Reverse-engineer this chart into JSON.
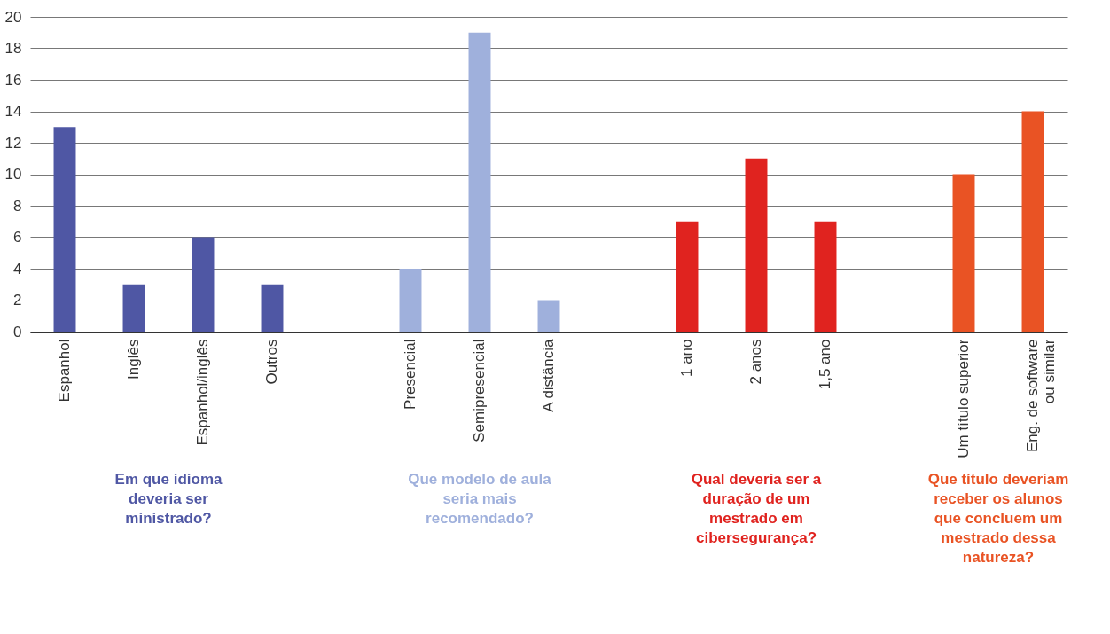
{
  "chart_data": {
    "type": "bar",
    "categories": [
      "Espanhol",
      "Inglês",
      "Espanhol/inglês",
      "Outros",
      null,
      "Presencial",
      "Semipresencial",
      "A distância",
      null,
      "1 ano",
      "2 anos",
      "1,5 ano",
      null,
      "Um título superior",
      "Eng. de software\nou similar"
    ],
    "series": [
      {
        "name": "Em que idioma deveria ser ministrado?",
        "color": "#4f57a4",
        "values": [
          13,
          3,
          6,
          3,
          null,
          null,
          null,
          null,
          null,
          null,
          null,
          null,
          null,
          null,
          null
        ]
      },
      {
        "name": "Que modelo de aula seria mais recomendado?",
        "color": "#9fb0dc",
        "values": [
          null,
          null,
          null,
          null,
          null,
          4,
          19,
          2,
          null,
          null,
          null,
          null,
          null,
          null,
          null
        ]
      },
      {
        "name": "Qual deveria ser a duração de um mestrado em cibersegurança?",
        "color": "#e0231f",
        "values": [
          null,
          null,
          null,
          null,
          null,
          null,
          null,
          null,
          null,
          7,
          11,
          7,
          null,
          null,
          null
        ]
      },
      {
        "name": "Que título deveriam receber os alunos que concluem um mestrado dessa natureza?",
        "color": "#e95324",
        "values": [
          null,
          null,
          null,
          null,
          null,
          null,
          null,
          null,
          null,
          null,
          null,
          null,
          null,
          10,
          14
        ]
      }
    ],
    "ylim": [
      0,
      20
    ],
    "yticks": [
      0,
      2,
      4,
      6,
      8,
      10,
      12,
      14,
      16,
      18,
      20
    ],
    "grid": "y",
    "legend": false
  }
}
